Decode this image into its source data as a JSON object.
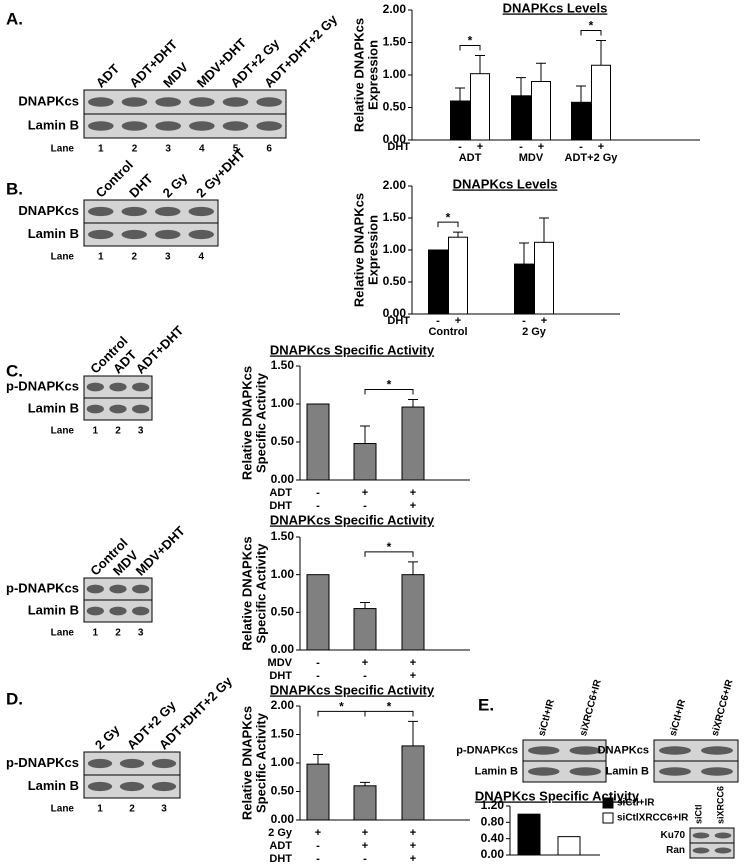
{
  "panel_labels": [
    "A.",
    "B.",
    "C.",
    "D.",
    "E."
  ],
  "blots": [
    {
      "lanes": [
        "ADT",
        "ADT+DHT",
        "MDV",
        "MDV+DHT",
        "ADT+2 Gy",
        "ADT+DHT+2 Gy"
      ],
      "rows": [
        "DNAPKcs",
        "Lamin B"
      ],
      "lane_label": "Lane",
      "lane_numbers": [
        1,
        2,
        3,
        4,
        5,
        6
      ]
    },
    {
      "lanes": [
        "Control",
        "DHT",
        "2 Gy",
        "2 Gy+DHT"
      ],
      "rows": [
        "DNAPKcs",
        "Lamin B"
      ],
      "lane_label": "Lane",
      "lane_numbers": [
        1,
        2,
        3,
        4
      ]
    },
    {
      "lanes": [
        "Control",
        "ADT",
        "ADT+DHT"
      ],
      "rows": [
        "p-DNAPKcs",
        "Lamin B"
      ],
      "lane_label": "Lane",
      "lane_numbers": [
        1,
        2,
        3
      ]
    },
    {
      "lanes": [
        "Control",
        "MDV",
        "MDV+DHT"
      ],
      "rows": [
        "p-DNAPKcs",
        "Lamin B"
      ],
      "lane_label": "Lane",
      "lane_numbers": [
        1,
        2,
        3
      ]
    },
    {
      "lanes": [
        "2 Gy",
        "ADT+2 Gy",
        "ADT+DHT+2 Gy"
      ],
      "rows": [
        "p-DNAPKcs",
        "Lamin B"
      ],
      "lane_label": "Lane",
      "lane_numbers": [
        1,
        2,
        3
      ]
    },
    {
      "lanes": [
        "siCtl+IR",
        "siXRCC6+IR"
      ],
      "rows": [
        "p-DNAPKcs",
        "Lamin B"
      ]
    },
    {
      "lanes": [
        "siCtl+IR",
        "siXRCC6+IR"
      ],
      "rows": [
        "DNAPKcs",
        "Lamin B"
      ]
    },
    {
      "lanes": [
        "siCtl",
        "siXRCC6"
      ],
      "rows": [
        "Ku70",
        "Ran"
      ]
    }
  ],
  "chart_data": [
    {
      "type": "bar",
      "title": "DNAPKcs Levels",
      "y_label": [
        "Relative DNAPKcs",
        "Expression"
      ],
      "categories": [
        "ADT",
        "MDV",
        "ADT+2 Gy"
      ],
      "series_label": "DHT",
      "series": [
        {
          "name": "-",
          "color": "#000000",
          "values": [
            0.6,
            0.68,
            0.58
          ],
          "errors": [
            0.2,
            0.28,
            0.25
          ]
        },
        {
          "name": "+",
          "color": "#ffffff",
          "values": [
            1.02,
            0.9,
            1.15
          ],
          "errors": [
            0.28,
            0.28,
            0.38
          ]
        }
      ],
      "ylim": [
        0,
        2
      ],
      "yticks": [
        {
          "value": 0,
          "label": "0.00"
        },
        {
          "value": 0.5,
          "label": "0.50"
        },
        {
          "value": 1,
          "label": "1.00"
        },
        {
          "value": 1.5,
          "label": "1.50"
        },
        {
          "value": 2,
          "label": "2.00"
        }
      ],
      "significance": [
        {
          "text": "*",
          "category": "ADT"
        },
        {
          "text": "*",
          "category": "ADT+2 Gy"
        }
      ]
    },
    {
      "type": "bar",
      "title": "DNAPKcs Levels",
      "y_label": [
        "Relative DNAPKcs",
        "Expression"
      ],
      "categories": [
        "Control",
        "2 Gy"
      ],
      "series_label": "DHT",
      "series": [
        {
          "name": "-",
          "color": "#000000",
          "values": [
            1.0,
            0.78
          ],
          "errors": [
            null,
            0.33
          ]
        },
        {
          "name": "+",
          "color": "#ffffff",
          "values": [
            1.2,
            1.12
          ],
          "errors": [
            0.08,
            0.38
          ]
        }
      ],
      "ylim": [
        0,
        2
      ],
      "yticks": [
        {
          "value": 0,
          "label": "0.00"
        },
        {
          "value": 0.5,
          "label": "0.50"
        },
        {
          "value": 1,
          "label": "1.00"
        },
        {
          "value": 1.5,
          "label": "1.50"
        },
        {
          "value": 2,
          "label": "2.00"
        }
      ],
      "significance": [
        {
          "text": "*",
          "category": "Control"
        }
      ]
    },
    {
      "type": "bar",
      "title": "DNAPKcs Specific Activity",
      "y_label": [
        "Relative DNAPKcs",
        "Specific Activity"
      ],
      "color": "#808080",
      "values": [
        1.0,
        0.48,
        0.96
      ],
      "errors": [
        null,
        0.23,
        0.1
      ],
      "conditions": [
        {
          "label": "ADT",
          "signs": [
            "-",
            "+",
            "+"
          ]
        },
        {
          "label": "DHT",
          "signs": [
            "-",
            "-",
            "+"
          ]
        }
      ],
      "ylim": [
        0,
        1.5
      ],
      "yticks": [
        {
          "value": 0,
          "label": "0.00"
        },
        {
          "value": 0.5,
          "label": "0.50"
        },
        {
          "value": 1,
          "label": "1.00"
        },
        {
          "value": 1.5,
          "label": "1.50"
        }
      ],
      "significance": [
        {
          "text": "*",
          "bars": [
            1,
            2
          ]
        }
      ]
    },
    {
      "type": "bar",
      "title": "DNAPKcs Specific Activity",
      "y_label": [
        "Relative DNAPKcs",
        "Specific Activity"
      ],
      "color": "#808080",
      "values": [
        1.0,
        0.55,
        1.0
      ],
      "errors": [
        null,
        0.08,
        0.17
      ],
      "conditions": [
        {
          "label": "MDV",
          "signs": [
            "-",
            "+",
            "+"
          ]
        },
        {
          "label": "DHT",
          "signs": [
            "-",
            "-",
            "+"
          ]
        }
      ],
      "ylim": [
        0,
        1.5
      ],
      "yticks": [
        {
          "value": 0,
          "label": "0.00"
        },
        {
          "value": 0.5,
          "label": "0.50"
        },
        {
          "value": 1,
          "label": "1.00"
        },
        {
          "value": 1.5,
          "label": "1.50"
        }
      ],
      "significance": [
        {
          "text": "*",
          "bars": [
            1,
            2
          ]
        }
      ]
    },
    {
      "type": "bar",
      "title": "DNAPKcs Specific Activity",
      "y_label": [
        "Relative DNAPKcs",
        "Specific Activity"
      ],
      "color": "#808080",
      "values": [
        0.98,
        0.6,
        1.3
      ],
      "errors": [
        0.17,
        0.06,
        0.43
      ],
      "conditions": [
        {
          "label": "2 Gy",
          "signs": [
            "+",
            "+",
            "+"
          ]
        },
        {
          "label": "ADT",
          "signs": [
            "-",
            "+",
            "+"
          ]
        },
        {
          "label": "DHT",
          "signs": [
            "-",
            "-",
            "+"
          ]
        }
      ],
      "ylim": [
        0,
        2
      ],
      "yticks": [
        {
          "value": 0,
          "label": "0.00"
        },
        {
          "value": 0.5,
          "label": "0.50"
        },
        {
          "value": 1,
          "label": "1.00"
        },
        {
          "value": 1.5,
          "label": "1.50"
        },
        {
          "value": 2,
          "label": "2.00"
        }
      ],
      "significance": [
        {
          "text": "*",
          "bars": [
            0,
            1
          ]
        },
        {
          "text": "*",
          "bars": [
            1,
            2
          ]
        }
      ]
    },
    {
      "type": "bar",
      "title": "DNAPKcs Specific Activity",
      "series": [
        {
          "name": "siCtl+IR",
          "color": "#000000",
          "values": [
            1.0
          ]
        },
        {
          "name": "siCtlXRCC6+IR",
          "color": "#ffffff",
          "values": [
            0.45
          ]
        }
      ],
      "ylim": [
        0,
        1.2
      ],
      "yticks": [
        {
          "value": 0,
          "label": "0.00"
        },
        {
          "value": 0.4,
          "label": "0.40"
        },
        {
          "value": 0.8,
          "label": "0.80"
        },
        {
          "value": 1.2,
          "label": "1.20"
        }
      ],
      "legend": true
    }
  ]
}
